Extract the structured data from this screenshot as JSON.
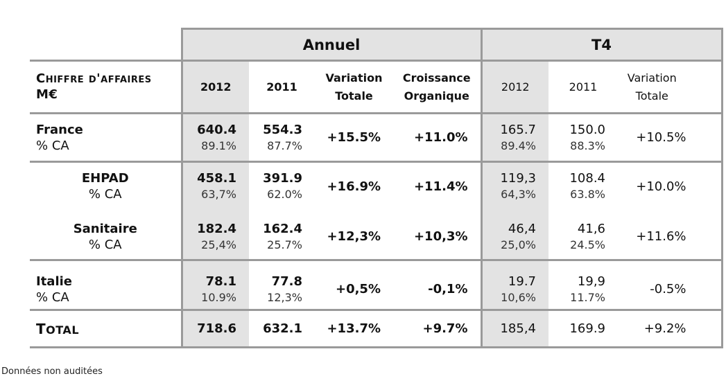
{
  "header": {
    "annual_label": "Annuel",
    "q4_label": "T4"
  },
  "columns": {
    "row_label_1": "Chiffre d'affaires",
    "row_label_2": "M€",
    "y2012": "2012",
    "y2011": "2011",
    "variation_l1": "Variation",
    "variation_l2": "Totale",
    "croissance_l1": "Croissance",
    "croissance_l2": "Organique",
    "q4_2012": "2012",
    "q4_2011": "2011",
    "q4_var_l1": "Variation",
    "q4_var_l2": "Totale"
  },
  "rows": {
    "france": {
      "label": "France",
      "sub": "% CA",
      "a2012": "640.4",
      "a2012_pct": "89.1%",
      "a2011": "554.3",
      "a2011_pct": "87.7%",
      "var": "+15.5%",
      "org": "+11.0%",
      "q2012": "165.7",
      "q2012_pct": "89.4%",
      "q2011": "150.0",
      "q2011_pct": "88.3%",
      "qvar": "+10.5%"
    },
    "ehpad": {
      "label": "EHPAD",
      "sub": "% CA",
      "a2012": "458.1",
      "a2012_pct": "63,7%",
      "a2011": "391.9",
      "a2011_pct": "62.0%",
      "var": "+16.9%",
      "org": "+11.4%",
      "q2012": "119,3",
      "q2012_pct": "64,3%",
      "q2011": "108.4",
      "q2011_pct": "63.8%",
      "qvar": "+10.0%"
    },
    "sanitaire": {
      "label": "Sanitaire",
      "sub": "% CA",
      "a2012": "182.4",
      "a2012_pct": "25,4%",
      "a2011": "162.4",
      "a2011_pct": "25.7%",
      "var": "+12,3%",
      "org": "+10,3%",
      "q2012": "46,4",
      "q2012_pct": "25,0%",
      "q2011": "41,6",
      "q2011_pct": "24.5%",
      "qvar": "+11.6%"
    },
    "italie": {
      "label": "Italie",
      "sub": "% CA",
      "a2012": "78.1",
      "a2012_pct": "10.9%",
      "a2011": "77.8",
      "a2011_pct": "12,3%",
      "var": "+0,5%",
      "org": "-0,1%",
      "q2012": "19.7",
      "q2012_pct": "10,6%",
      "q2011": "19,9",
      "q2011_pct": "11.7%",
      "qvar": "-0.5%"
    },
    "total": {
      "label_first": "T",
      "label_rest": "otal",
      "a2012": "718.6",
      "a2011": "632.1",
      "var": "+13.7%",
      "org": "+9.7%",
      "q2012": "185,4",
      "q2011": "169.9",
      "qvar": "+9.2%"
    }
  },
  "footnote": "Données non auditées"
}
